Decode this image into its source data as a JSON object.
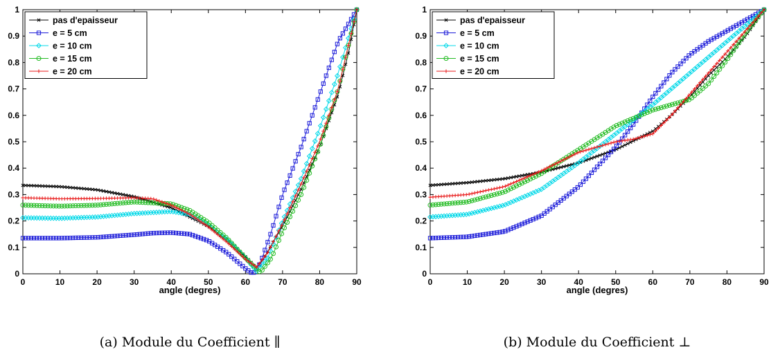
{
  "chart_data": [
    {
      "type": "line",
      "xlabel": "angle (degres)",
      "ylabel": "",
      "xlim": [
        0,
        90
      ],
      "ylim": [
        0,
        1
      ],
      "xticks": [
        0,
        10,
        20,
        30,
        40,
        50,
        60,
        70,
        80,
        90
      ],
      "yticks": [
        0,
        0.1,
        0.2,
        0.3,
        0.4,
        0.5,
        0.6,
        0.7,
        0.8,
        0.9,
        1
      ],
      "legend_position": "top-left",
      "grid": false,
      "caption": "(a) Module du Coefficient ∥",
      "series": [
        {
          "name": "pas d'epaisseur",
          "color": "#000000",
          "marker": "x",
          "points": [
            [
              0,
              0.335
            ],
            [
              10,
              0.33
            ],
            [
              20,
              0.318
            ],
            [
              30,
              0.292
            ],
            [
              40,
              0.25
            ],
            [
              50,
              0.18
            ],
            [
              55,
              0.13
            ],
            [
              60,
              0.065
            ],
            [
              63,
              0.02
            ],
            [
              65,
              0.06
            ],
            [
              70,
              0.18
            ],
            [
              75,
              0.32
            ],
            [
              80,
              0.48
            ],
            [
              85,
              0.68
            ],
            [
              88,
              0.85
            ],
            [
              90,
              1.0
            ]
          ]
        },
        {
          "name": "e = 5 cm",
          "color": "#1a1ad9",
          "marker": "square",
          "points": [
            [
              0,
              0.135
            ],
            [
              10,
              0.135
            ],
            [
              20,
              0.138
            ],
            [
              30,
              0.148
            ],
            [
              35,
              0.154
            ],
            [
              40,
              0.156
            ],
            [
              45,
              0.15
            ],
            [
              50,
              0.125
            ],
            [
              55,
              0.08
            ],
            [
              60,
              0.02
            ],
            [
              62,
              0.0
            ],
            [
              64,
              0.04
            ],
            [
              67,
              0.16
            ],
            [
              70,
              0.3
            ],
            [
              75,
              0.48
            ],
            [
              80,
              0.68
            ],
            [
              85,
              0.88
            ],
            [
              90,
              1.0
            ]
          ]
        },
        {
          "name": "e = 10 cm",
          "color": "#00d8e8",
          "marker": "diamond",
          "points": [
            [
              0,
              0.212
            ],
            [
              10,
              0.21
            ],
            [
              20,
              0.215
            ],
            [
              30,
              0.228
            ],
            [
              40,
              0.236
            ],
            [
              45,
              0.225
            ],
            [
              50,
              0.185
            ],
            [
              55,
              0.13
            ],
            [
              60,
              0.06
            ],
            [
              63,
              0.01
            ],
            [
              66,
              0.06
            ],
            [
              70,
              0.2
            ],
            [
              75,
              0.36
            ],
            [
              80,
              0.55
            ],
            [
              85,
              0.76
            ],
            [
              90,
              1.0
            ]
          ]
        },
        {
          "name": "e = 15 cm",
          "color": "#22bb22",
          "marker": "circle",
          "points": [
            [
              0,
              0.26
            ],
            [
              10,
              0.256
            ],
            [
              20,
              0.26
            ],
            [
              30,
              0.272
            ],
            [
              40,
              0.265
            ],
            [
              45,
              0.24
            ],
            [
              50,
              0.195
            ],
            [
              55,
              0.135
            ],
            [
              60,
              0.06
            ],
            [
              64,
              0.005
            ],
            [
              67,
              0.06
            ],
            [
              70,
              0.16
            ],
            [
              75,
              0.3
            ],
            [
              80,
              0.48
            ],
            [
              85,
              0.7
            ],
            [
              90,
              1.0
            ]
          ]
        },
        {
          "name": "e = 20 cm",
          "color": "#e81818",
          "marker": "plus",
          "points": [
            [
              0,
              0.288
            ],
            [
              10,
              0.284
            ],
            [
              20,
              0.285
            ],
            [
              30,
              0.288
            ],
            [
              35,
              0.284
            ],
            [
              40,
              0.26
            ],
            [
              45,
              0.225
            ],
            [
              50,
              0.178
            ],
            [
              55,
              0.12
            ],
            [
              60,
              0.055
            ],
            [
              63,
              0.025
            ],
            [
              66,
              0.08
            ],
            [
              70,
              0.19
            ],
            [
              75,
              0.34
            ],
            [
              80,
              0.5
            ],
            [
              85,
              0.7
            ],
            [
              90,
              1.0
            ]
          ]
        }
      ]
    },
    {
      "type": "line",
      "xlabel": "angle (degres)",
      "ylabel": "",
      "xlim": [
        0,
        90
      ],
      "ylim": [
        0,
        1
      ],
      "xticks": [
        0,
        10,
        20,
        30,
        40,
        50,
        60,
        70,
        80,
        90
      ],
      "yticks": [
        0,
        0.1,
        0.2,
        0.3,
        0.4,
        0.5,
        0.6,
        0.7,
        0.8,
        0.9,
        1
      ],
      "legend_position": "top-left",
      "grid": false,
      "caption": "(b) Module du Coefficient ⊥",
      "series": [
        {
          "name": "pas d'epaisseur",
          "color": "#000000",
          "marker": "x",
          "points": [
            [
              0,
              0.335
            ],
            [
              10,
              0.345
            ],
            [
              20,
              0.36
            ],
            [
              30,
              0.385
            ],
            [
              40,
              0.42
            ],
            [
              50,
              0.47
            ],
            [
              60,
              0.54
            ],
            [
              65,
              0.6
            ],
            [
              70,
              0.67
            ],
            [
              75,
              0.75
            ],
            [
              80,
              0.82
            ],
            [
              85,
              0.9
            ],
            [
              90,
              1.0
            ]
          ]
        },
        {
          "name": "e = 5 cm",
          "color": "#1a1ad9",
          "marker": "square",
          "points": [
            [
              0,
              0.135
            ],
            [
              10,
              0.14
            ],
            [
              20,
              0.16
            ],
            [
              30,
              0.22
            ],
            [
              40,
              0.33
            ],
            [
              50,
              0.48
            ],
            [
              55,
              0.57
            ],
            [
              60,
              0.67
            ],
            [
              65,
              0.76
            ],
            [
              70,
              0.83
            ],
            [
              75,
              0.88
            ],
            [
              80,
              0.92
            ],
            [
              85,
              0.96
            ],
            [
              90,
              1.0
            ]
          ]
        },
        {
          "name": "e = 10 cm",
          "color": "#00d8e8",
          "marker": "diamond",
          "points": [
            [
              0,
              0.215
            ],
            [
              10,
              0.225
            ],
            [
              20,
              0.26
            ],
            [
              30,
              0.32
            ],
            [
              40,
              0.42
            ],
            [
              50,
              0.53
            ],
            [
              60,
              0.64
            ],
            [
              70,
              0.76
            ],
            [
              80,
              0.88
            ],
            [
              90,
              1.0
            ]
          ]
        },
        {
          "name": "e = 15 cm",
          "color": "#22bb22",
          "marker": "circle",
          "points": [
            [
              0,
              0.26
            ],
            [
              10,
              0.272
            ],
            [
              20,
              0.31
            ],
            [
              30,
              0.38
            ],
            [
              40,
              0.47
            ],
            [
              50,
              0.56
            ],
            [
              60,
              0.62
            ],
            [
              70,
              0.66
            ],
            [
              75,
              0.72
            ],
            [
              80,
              0.81
            ],
            [
              85,
              0.91
            ],
            [
              90,
              1.0
            ]
          ]
        },
        {
          "name": "e = 20 cm",
          "color": "#e81818",
          "marker": "plus",
          "points": [
            [
              0,
              0.29
            ],
            [
              10,
              0.3
            ],
            [
              20,
              0.33
            ],
            [
              30,
              0.39
            ],
            [
              40,
              0.46
            ],
            [
              50,
              0.5
            ],
            [
              55,
              0.51
            ],
            [
              60,
              0.53
            ],
            [
              65,
              0.6
            ],
            [
              70,
              0.68
            ],
            [
              75,
              0.76
            ],
            [
              80,
              0.84
            ],
            [
              85,
              0.92
            ],
            [
              90,
              1.0
            ]
          ]
        }
      ]
    }
  ]
}
